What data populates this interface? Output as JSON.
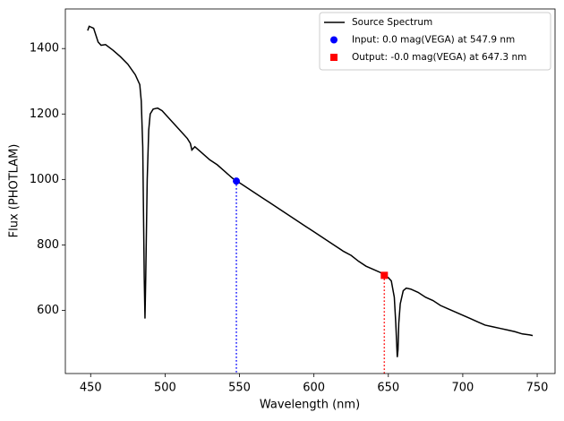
{
  "chart_data": {
    "type": "line",
    "x_label": "Wavelength (nm)",
    "y_label": "Flux (PHOTLAM)",
    "xlim": [
      433,
      762
    ],
    "ylim": [
      407,
      1521
    ],
    "xticks": [
      450,
      500,
      550,
      600,
      650,
      700,
      750
    ],
    "yticks": [
      600,
      800,
      1000,
      1200,
      1400
    ],
    "legend": "upper right",
    "series": [
      {
        "name": "Source Spectrum",
        "color": "#000000",
        "marker": "none",
        "x": [
          448,
          449,
          452,
          455,
          457,
          460,
          465,
          470,
          475,
          480,
          483,
          484,
          485,
          486,
          486.5,
          487,
          488,
          489,
          490,
          492,
          495,
          498,
          500,
          505,
          510,
          515,
          517,
          518,
          520,
          525,
          530,
          535,
          540,
          545,
          547.9,
          550,
          555,
          560,
          565,
          570,
          575,
          580,
          585,
          590,
          595,
          600,
          605,
          610,
          615,
          620,
          625,
          630,
          635,
          640,
          645,
          647.3,
          650,
          652,
          654,
          655,
          656,
          656.5,
          657,
          658,
          660,
          662,
          665,
          670,
          675,
          680,
          685,
          690,
          695,
          700,
          705,
          710,
          715,
          720,
          725,
          730,
          735,
          740,
          745,
          747
        ],
        "values": [
          1455,
          1468,
          1462,
          1420,
          1410,
          1412,
          1395,
          1375,
          1352,
          1320,
          1290,
          1240,
          1100,
          700,
          575,
          700,
          1000,
          1150,
          1200,
          1215,
          1218,
          1210,
          1200,
          1175,
          1150,
          1125,
          1110,
          1090,
          1100,
          1080,
          1060,
          1045,
          1025,
          1005,
          995,
          990,
          975,
          960,
          945,
          930,
          915,
          900,
          885,
          870,
          855,
          840,
          825,
          810,
          795,
          780,
          768,
          750,
          735,
          725,
          715,
          707,
          700,
          690,
          640,
          560,
          457,
          480,
          560,
          620,
          660,
          668,
          665,
          655,
          640,
          630,
          615,
          605,
          595,
          585,
          575,
          565,
          555,
          550,
          545,
          540,
          535,
          528,
          525,
          523
        ]
      },
      {
        "name": "Input: 0.0 mag(VEGA) at 547.9 nm",
        "color": "#0000ff",
        "marker": "circle",
        "x": [
          547.9
        ],
        "values": [
          995
        ]
      },
      {
        "name": "Output: -0.0 mag(VEGA) at 647.3 nm",
        "color": "#ff0000",
        "marker": "square",
        "x": [
          647.3
        ],
        "values": [
          707
        ]
      }
    ]
  }
}
